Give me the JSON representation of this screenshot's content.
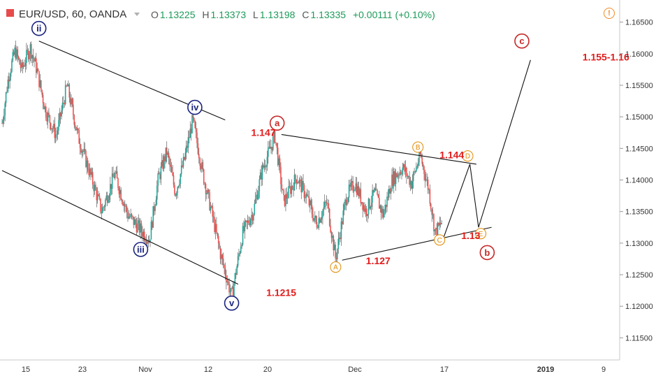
{
  "header": {
    "symbol": "EUR/USD, 60, OANDA",
    "open_label": "O",
    "open": "1.13225",
    "high_label": "H",
    "high": "1.13373",
    "low_label": "L",
    "low": "1.13198",
    "close_label": "C",
    "close": "1.13335",
    "change": "+0.00111 (+0.10%)",
    "alert_glyph": "!"
  },
  "colors": {
    "up": "#26a69a",
    "down": "#ef5350",
    "wave_blue": "#1a237e",
    "wave_red": "#c62828",
    "wave_orange": "#e08a00",
    "price_label": "#e31b1b",
    "axis_text": "#333333",
    "ohlc_value": "#1d9b5a"
  },
  "chart_data": {
    "type": "candlestick",
    "ylim": [
      1.1115,
      1.1685
    ],
    "y_ticks": [
      "1.11500",
      "1.12000",
      "1.12500",
      "1.13000",
      "1.13500",
      "1.14000",
      "1.14500",
      "1.15000",
      "1.15500",
      "1.16000",
      "1.16500"
    ],
    "x_ticks": [
      "15",
      "23",
      "Nov",
      "12",
      "20",
      "Dec",
      "17",
      "2019",
      "9"
    ],
    "price_path": [
      {
        "x": 0,
        "y": 1.149
      },
      {
        "x": 0.3,
        "y": 1.1565
      },
      {
        "x": 0.6,
        "y": 1.1605
      },
      {
        "x": 0.9,
        "y": 1.1575
      },
      {
        "x": 1.3,
        "y": 1.161
      },
      {
        "x": 1.6,
        "y": 1.1575
      },
      {
        "x": 2.0,
        "y": 1.151
      },
      {
        "x": 2.5,
        "y": 1.147
      },
      {
        "x": 3.0,
        "y": 1.155
      },
      {
        "x": 3.5,
        "y": 1.147
      },
      {
        "x": 4.2,
        "y": 1.1395
      },
      {
        "x": 4.6,
        "y": 1.135
      },
      {
        "x": 5.2,
        "y": 1.141
      },
      {
        "x": 5.8,
        "y": 1.1345
      },
      {
        "x": 6.3,
        "y": 1.1325
      },
      {
        "x": 6.8,
        "y": 1.1305
      },
      {
        "x": 7.2,
        "y": 1.14
      },
      {
        "x": 7.6,
        "y": 1.1445
      },
      {
        "x": 8.0,
        "y": 1.138
      },
      {
        "x": 8.4,
        "y": 1.143
      },
      {
        "x": 8.8,
        "y": 1.1495
      },
      {
        "x": 9.3,
        "y": 1.1405
      },
      {
        "x": 9.7,
        "y": 1.1345
      },
      {
        "x": 10.1,
        "y": 1.128
      },
      {
        "x": 10.6,
        "y": 1.1215
      },
      {
        "x": 11.1,
        "y": 1.1315
      },
      {
        "x": 11.6,
        "y": 1.135
      },
      {
        "x": 12.0,
        "y": 1.1415
      },
      {
        "x": 12.6,
        "y": 1.147
      },
      {
        "x": 13.0,
        "y": 1.1365
      },
      {
        "x": 13.6,
        "y": 1.1405
      },
      {
        "x": 14.1,
        "y": 1.137
      },
      {
        "x": 14.5,
        "y": 1.133
      },
      {
        "x": 15.0,
        "y": 1.1365
      },
      {
        "x": 15.4,
        "y": 1.1275
      },
      {
        "x": 15.9,
        "y": 1.1375
      },
      {
        "x": 16.3,
        "y": 1.1395
      },
      {
        "x": 16.8,
        "y": 1.135
      },
      {
        "x": 17.2,
        "y": 1.138
      },
      {
        "x": 17.6,
        "y": 1.1345
      },
      {
        "x": 18.0,
        "y": 1.14
      },
      {
        "x": 18.5,
        "y": 1.142
      },
      {
        "x": 18.9,
        "y": 1.1395
      },
      {
        "x": 19.3,
        "y": 1.144
      },
      {
        "x": 19.7,
        "y": 1.1385
      },
      {
        "x": 20.0,
        "y": 1.1315
      },
      {
        "x": 20.3,
        "y": 1.1333
      }
    ],
    "trend_lines": [
      {
        "name": "channel-upper-line",
        "points": [
          [
            1.7,
            1.162
          ],
          [
            10.3,
            1.1495
          ]
        ]
      },
      {
        "name": "channel-lower-line",
        "points": [
          [
            0.0,
            1.1415
          ],
          [
            10.9,
            1.1235
          ]
        ]
      },
      {
        "name": "triangle-upper-line",
        "points": [
          [
            12.9,
            1.1472
          ],
          [
            21.9,
            1.1425
          ]
        ]
      },
      {
        "name": "triangle-lower-line",
        "points": [
          [
            15.7,
            1.1273
          ],
          [
            22.6,
            1.1325
          ]
        ]
      },
      {
        "name": "projection-path-line",
        "points": [
          [
            20.4,
            1.131
          ],
          [
            21.6,
            1.1425
          ],
          [
            22.0,
            1.1325
          ],
          [
            24.4,
            1.159
          ]
        ]
      }
    ],
    "wave_labels": [
      {
        "text": "ii",
        "x": 1.7,
        "y": 1.164,
        "color": "blue"
      },
      {
        "text": "iii",
        "x": 6.4,
        "y": 1.129,
        "color": "blue"
      },
      {
        "text": "iv",
        "x": 8.9,
        "y": 1.1515,
        "color": "blue"
      },
      {
        "text": "v",
        "x": 10.6,
        "y": 1.1205,
        "color": "blue"
      },
      {
        "text": "a",
        "x": 12.7,
        "y": 1.149,
        "color": "red"
      },
      {
        "text": "b",
        "x": 22.4,
        "y": 1.1285,
        "color": "red"
      },
      {
        "text": "c",
        "x": 24.0,
        "y": 1.162,
        "color": "red"
      },
      {
        "text": "A",
        "x": 15.4,
        "y": 1.1262,
        "color": "orange"
      },
      {
        "text": "B",
        "x": 19.2,
        "y": 1.1452,
        "color": "orange"
      },
      {
        "text": "C",
        "x": 20.2,
        "y": 1.1305,
        "color": "orange"
      },
      {
        "text": "D",
        "x": 21.5,
        "y": 1.1438,
        "color": "orange"
      },
      {
        "text": "E",
        "x": 22.1,
        "y": 1.1315,
        "color": "orange"
      }
    ],
    "price_labels": [
      {
        "text": "1.147",
        "x": 11.5,
        "y": 1.1475
      },
      {
        "text": "1.144",
        "x": 20.2,
        "y": 1.144
      },
      {
        "text": "1.127",
        "x": 16.8,
        "y": 1.1272
      },
      {
        "text": "1.13",
        "x": 21.2,
        "y": 1.1312
      },
      {
        "text": "1.1215",
        "x": 12.2,
        "y": 1.1222
      },
      {
        "text": "1.155-1.16",
        "x": 26.8,
        "y": 1.1595
      }
    ]
  }
}
